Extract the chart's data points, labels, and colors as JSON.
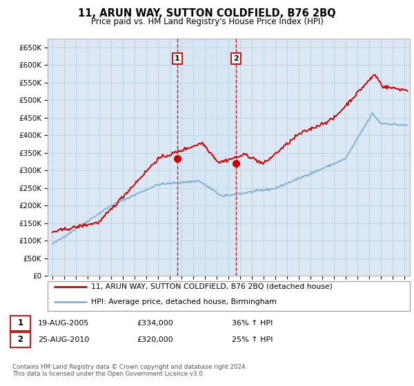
{
  "title": "11, ARUN WAY, SUTTON COLDFIELD, B76 2BQ",
  "subtitle": "Price paid vs. HM Land Registry's House Price Index (HPI)",
  "legend_line1": "11, ARUN WAY, SUTTON COLDFIELD, B76 2BQ (detached house)",
  "legend_line2": "HPI: Average price, detached house, Birmingham",
  "annotation1_label": "1",
  "annotation1_date": "19-AUG-2005",
  "annotation1_price": "£334,000",
  "annotation1_hpi": "36% ↑ HPI",
  "annotation1_year": 2005.64,
  "annotation1_value": 334000,
  "annotation2_label": "2",
  "annotation2_date": "25-AUG-2010",
  "annotation2_price": "£320,000",
  "annotation2_hpi": "25% ↑ HPI",
  "annotation2_year": 2010.64,
  "annotation2_value": 320000,
  "red_color": "#cc0000",
  "blue_color": "#7fb3d3",
  "dashed_color": "#cc0000",
  "bg_color": "#ffffff",
  "plot_bg_color": "#dce9f5",
  "grid_color": "#b8cfe0",
  "yticks": [
    0,
    50000,
    100000,
    150000,
    200000,
    250000,
    300000,
    350000,
    400000,
    450000,
    500000,
    550000,
    600000,
    650000
  ],
  "ymin": 0,
  "ymax": 675000,
  "xmin": 1994.6,
  "xmax": 2025.5,
  "footnote": "Contains HM Land Registry data © Crown copyright and database right 2024.\nThis data is licensed under the Open Government Licence v3.0."
}
